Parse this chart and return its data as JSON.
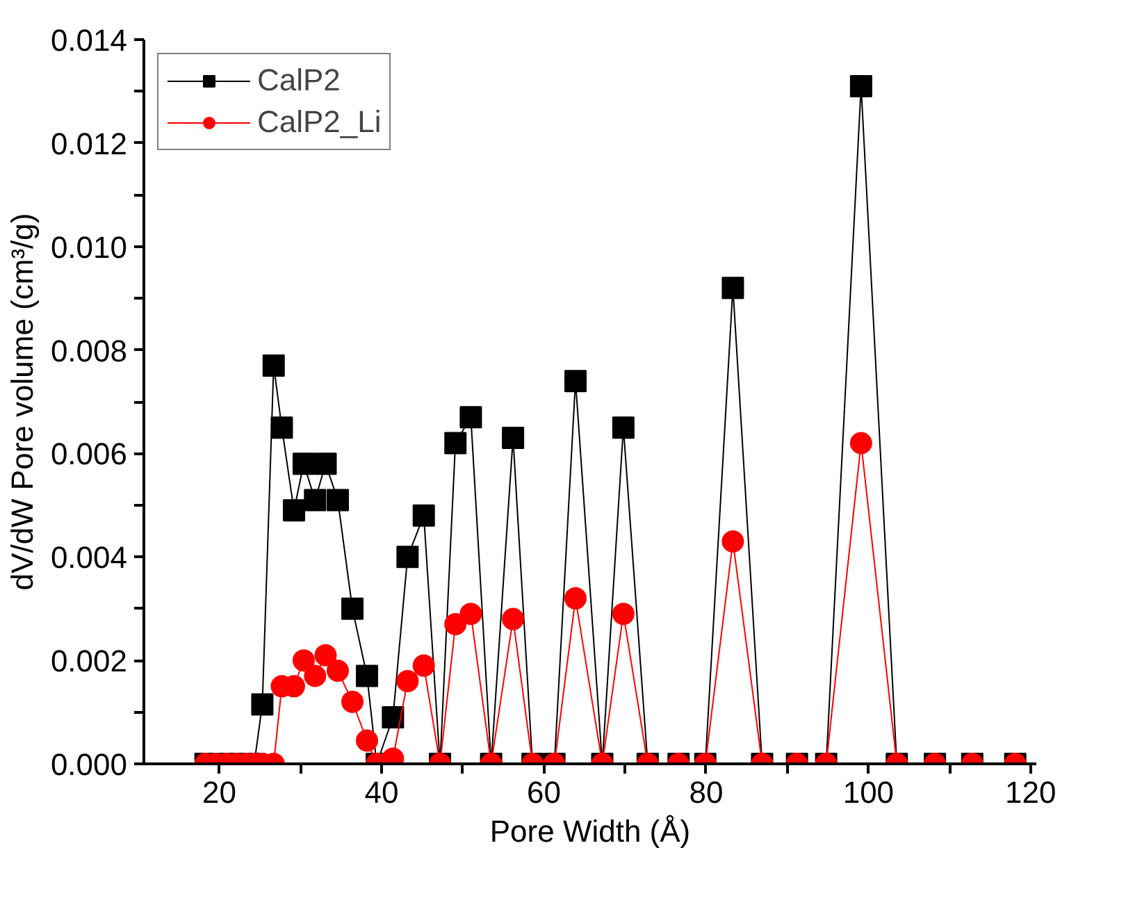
{
  "chart_data": {
    "type": "line",
    "xlabel": "Pore Width (Å)",
    "ylabel": "dV/dW Pore volume (cm³/g)",
    "x": [
      18.3,
      19.6,
      20.9,
      22.1,
      23.3,
      24.3,
      25.3,
      26.7,
      27.7,
      29.2,
      30.4,
      31.8,
      33.1,
      34.6,
      36.4,
      38.2,
      39.4,
      41.4,
      43.2,
      45.2,
      47.2,
      49.1,
      51.0,
      53.5,
      56.2,
      58.6,
      61.3,
      63.9,
      67.2,
      69.8,
      72.8,
      76.6,
      79.9,
      83.3,
      86.9,
      91.2,
      94.8,
      99.1,
      103.5,
      108.2,
      112.8,
      118.1
    ],
    "series": [
      {
        "name": "CalP2",
        "color": "#000000",
        "marker": "square",
        "values": [
          0,
          0,
          0,
          0,
          0,
          0,
          0.00115,
          0.0077,
          0.0065,
          0.0049,
          0.0058,
          0.0051,
          0.0058,
          0.0051,
          0.003,
          0.0017,
          0,
          0.0009,
          0.004,
          0.0048,
          0,
          0.0062,
          0.0067,
          0,
          0.0063,
          0,
          0,
          0.0074,
          0,
          0.0065,
          0,
          0,
          0,
          0.0092,
          0,
          0,
          0,
          0.0131,
          0,
          0,
          0,
          0
        ]
      },
      {
        "name": "CalP2_Li",
        "color": "#ff0000",
        "marker": "circle",
        "values": [
          0,
          0,
          0,
          0,
          0,
          0,
          0,
          0,
          0.0015,
          0.0015,
          0.002,
          0.0017,
          0.0021,
          0.0018,
          0.0012,
          0.00045,
          0,
          0.0001,
          0.0016,
          0.0019,
          0,
          0.0027,
          0.0029,
          0,
          0.0028,
          0,
          0,
          0.0032,
          0,
          0.0029,
          0,
          0,
          0,
          0.0043,
          0,
          0,
          0,
          0.0062,
          0,
          0,
          0,
          0
        ]
      }
    ],
    "xlim": [
      10.7,
      120.7
    ],
    "ylim": [
      0,
      0.014
    ],
    "xticks": [
      20,
      {
        "value": 30,
        "label": null
      },
      40,
      {
        "value": 50,
        "label": null
      },
      60,
      {
        "value": 70,
        "label": null
      },
      80,
      {
        "value": 90,
        "label": null
      },
      100,
      {
        "value": 110,
        "label": null
      },
      120
    ],
    "yticks": [
      {
        "value": 0,
        "label": "0.000"
      },
      {
        "value": 0.001,
        "label": null
      },
      {
        "value": 0.002,
        "label": "0.002"
      },
      {
        "value": 0.003,
        "label": null
      },
      {
        "value": 0.004,
        "label": "0.004"
      },
      {
        "value": 0.005,
        "label": null
      },
      {
        "value": 0.006,
        "label": "0.006"
      },
      {
        "value": 0.007,
        "label": null
      },
      {
        "value": 0.008,
        "label": "0.008"
      },
      {
        "value": 0.009,
        "label": null
      },
      {
        "value": 0.01,
        "label": "0.010"
      },
      {
        "value": 0.011,
        "label": null
      },
      {
        "value": 0.012,
        "label": "0.012"
      },
      {
        "value": 0.013,
        "label": null
      },
      {
        "value": 0.014,
        "label": "0.014"
      }
    ],
    "grid": false,
    "legend": "top left",
    "line_style": "solid"
  }
}
